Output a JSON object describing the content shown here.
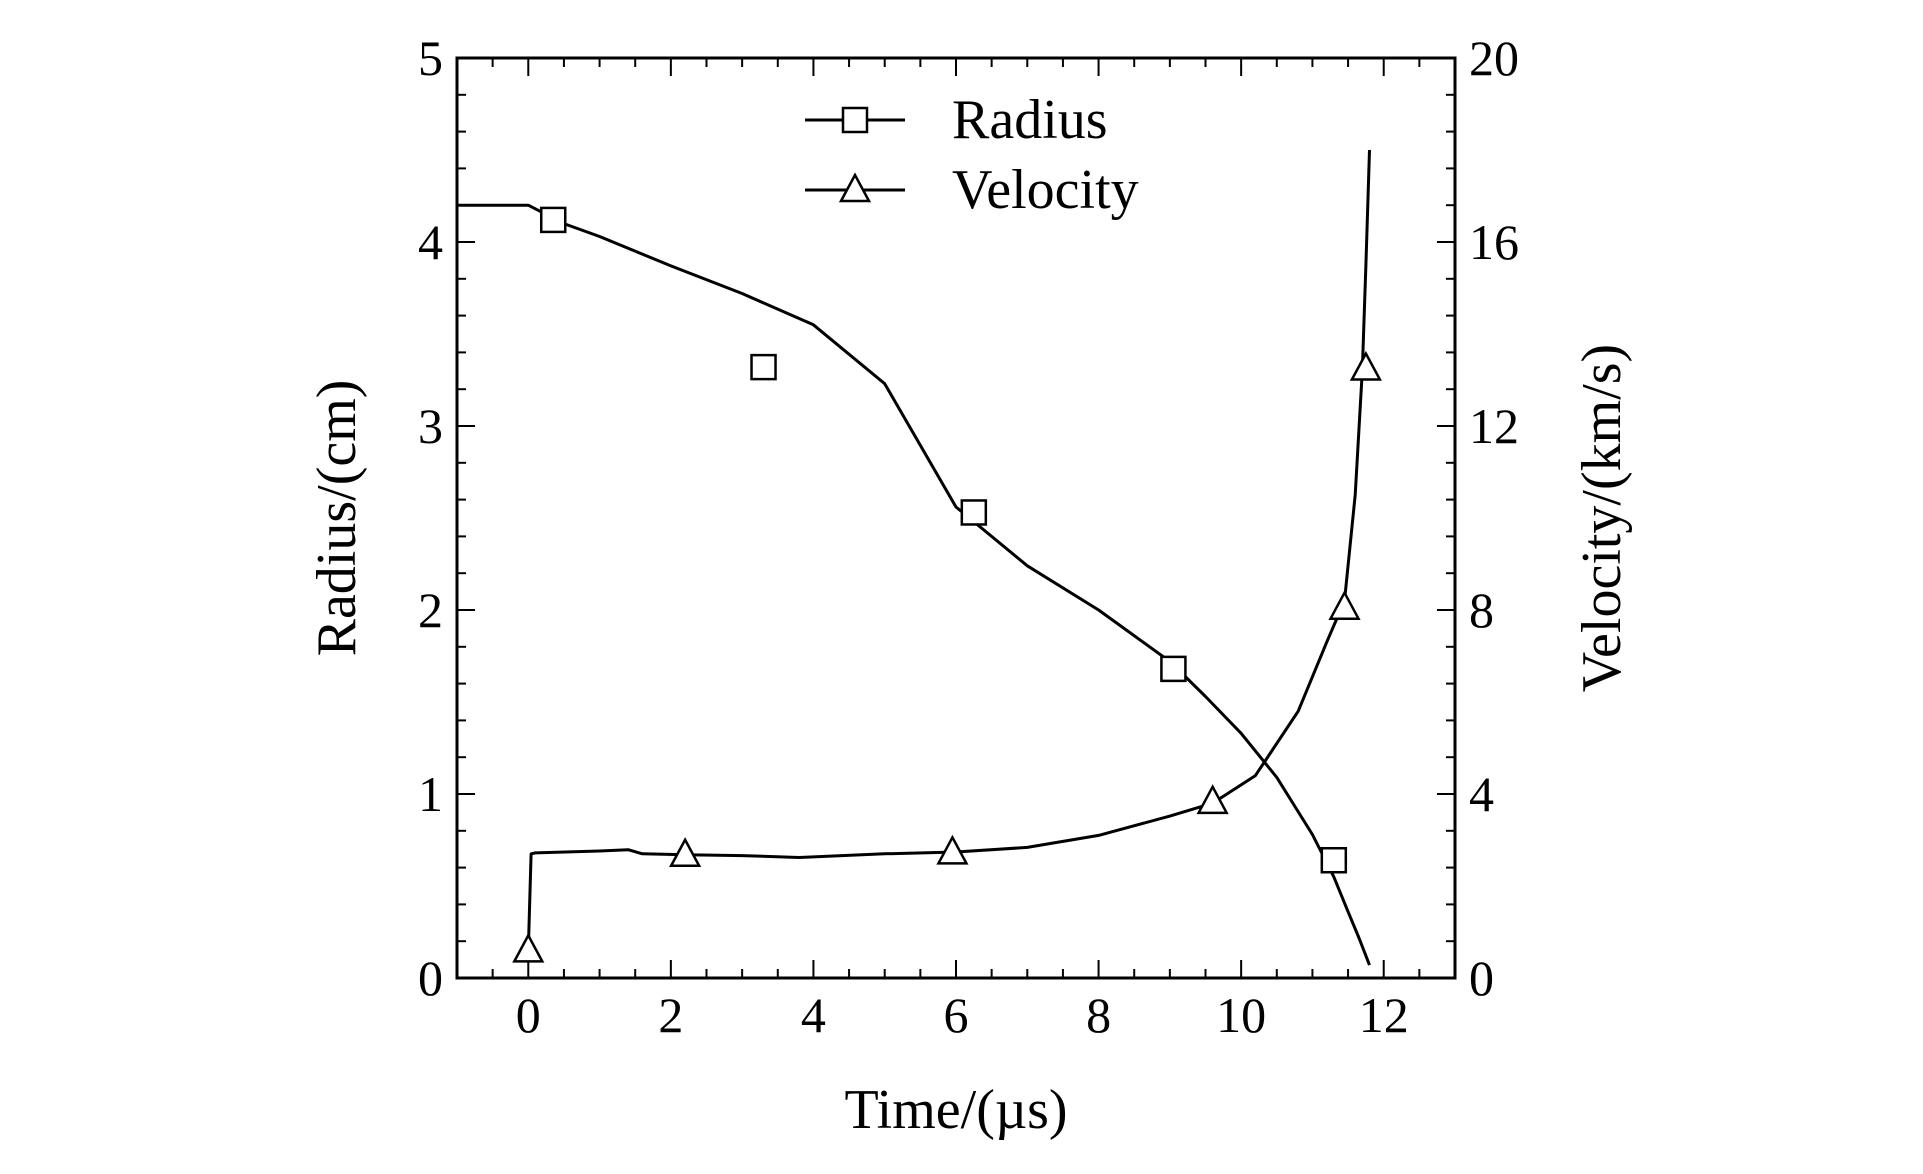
{
  "chart_data": {
    "type": "line",
    "title": "",
    "xlabel": "Time/(µs)",
    "ylabel": "Radius/(cm)",
    "y2label": "Velocity/(km/s)",
    "xlim": [
      -1,
      13
    ],
    "ylim": [
      0,
      5
    ],
    "y2lim": [
      0,
      20
    ],
    "xticks": [
      0,
      2,
      4,
      6,
      8,
      10,
      12
    ],
    "yticks": [
      0,
      1,
      2,
      3,
      4,
      5
    ],
    "y2ticks": [
      0,
      4,
      8,
      12,
      16,
      20
    ],
    "grid": false,
    "legend": "top-center",
    "series": [
      {
        "name": "Radius",
        "axis": "left",
        "marker": "square",
        "x": [
          -1,
          0,
          0.5,
          1,
          2,
          3,
          4,
          5,
          6,
          7,
          8,
          9,
          9.5,
          10,
          10.5,
          11,
          11.3,
          11.5,
          11.65,
          11.8
        ],
        "y": [
          4.2,
          4.2,
          4.1,
          4.03,
          3.87,
          3.72,
          3.55,
          3.23,
          2.56,
          2.24,
          2.0,
          1.72,
          1.53,
          1.33,
          1.09,
          0.78,
          0.55,
          0.36,
          0.22,
          0.07
        ],
        "marker_x": [
          0.35,
          3.3,
          6.25,
          9.05,
          11.3
        ],
        "marker_y": [
          4.12,
          3.32,
          2.53,
          1.68,
          0.64
        ]
      },
      {
        "name": "Velocity",
        "axis": "right",
        "marker": "triangle",
        "x": [
          0,
          0.04,
          0.1,
          1,
          1.4,
          1.6,
          2.2,
          3,
          3.8,
          5,
          6,
          7,
          8,
          9,
          9.6,
          10.2,
          10.8,
          11.2,
          11.45,
          11.6,
          11.7,
          11.75,
          11.8
        ],
        "y": [
          0.6,
          2.7,
          2.72,
          2.76,
          2.79,
          2.7,
          2.68,
          2.66,
          2.62,
          2.7,
          2.74,
          2.84,
          3.1,
          3.52,
          3.8,
          4.4,
          5.8,
          7.3,
          8.2,
          10.5,
          13.2,
          15.5,
          18.0
        ],
        "marker_x": [
          0,
          2.2,
          5.95,
          9.6,
          11.45,
          11.75
        ],
        "marker_y": [
          0.6,
          2.68,
          2.73,
          3.83,
          8.05,
          13.25
        ]
      }
    ]
  }
}
